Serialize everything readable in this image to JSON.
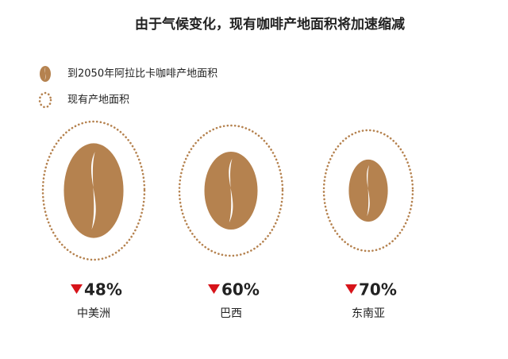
{
  "chart_data": {
    "type": "bean-shrink",
    "title": "由于气候变化，现有咖啡产地面积将加速缩减",
    "series": [
      {
        "name": "到2050年阿拉比卡咖啡产地面积",
        "color": "#b5824f"
      },
      {
        "name": "现有产地面积",
        "color": "#b5824f"
      }
    ],
    "categories": [
      "中美洲",
      "巴西",
      "东南亚"
    ],
    "values": [
      48,
      60,
      70
    ],
    "value_labels": [
      "48%",
      "60%",
      "70%"
    ],
    "arrow_color": "#d7141a"
  }
}
